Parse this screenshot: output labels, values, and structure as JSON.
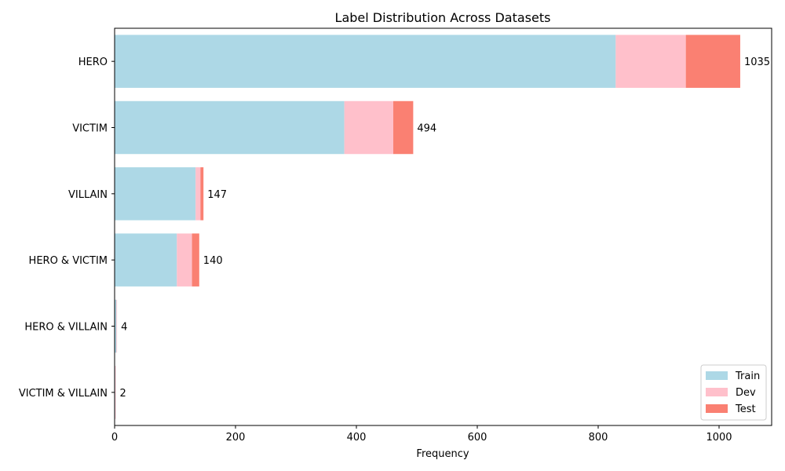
{
  "chart_data": {
    "type": "bar",
    "orientation": "horizontal",
    "stacked": true,
    "title": "Label Distribution Across Datasets",
    "xlabel": "Frequency",
    "ylabel": "",
    "xlim": [
      0,
      1087
    ],
    "xticks": [
      "0",
      "200",
      "400",
      "600",
      "800",
      "1000"
    ],
    "categories": [
      "HERO",
      "VICTIM",
      "VILLAIN",
      "HERO & VICTIM",
      "HERO & VILLAIN",
      "VICTIM & VILLAIN"
    ],
    "series": [
      {
        "name": "Train",
        "color": "#add8e6",
        "values": [
          829,
          380,
          134,
          103,
          3,
          1
        ]
      },
      {
        "name": "Dev",
        "color": "#ffc0cb",
        "values": [
          116,
          81,
          8,
          25,
          1,
          1
        ]
      },
      {
        "name": "Test",
        "color": "#fa8072",
        "values": [
          90,
          33,
          5,
          12,
          0,
          0
        ]
      }
    ],
    "totals": [
      "1035",
      "494",
      "147",
      "140",
      "4",
      "2"
    ],
    "legend_position": "lower-right",
    "grid": false
  }
}
